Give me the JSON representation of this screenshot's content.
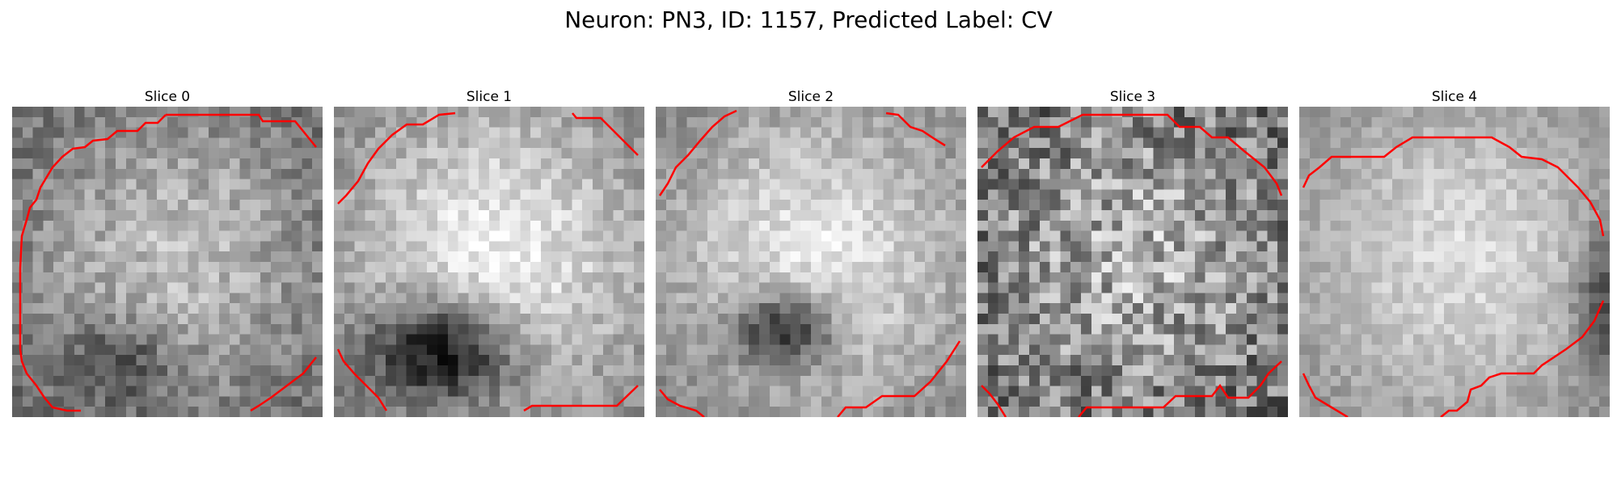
{
  "figure": {
    "title": "Neuron: PN3, ID: 1157, Predicted Label: CV"
  },
  "contour_color": "#ff0000",
  "panels": [
    {
      "title": "Slice 0",
      "seed": 11,
      "style": "mid"
    },
    {
      "title": "Slice 1",
      "seed": 23,
      "style": "bright-dark-blob"
    },
    {
      "title": "Slice 2",
      "seed": 37,
      "style": "bright-small-blob"
    },
    {
      "title": "Slice 3",
      "seed": 41,
      "style": "noisy"
    },
    {
      "title": "Slice 4",
      "seed": 53,
      "style": "smooth-bright"
    }
  ]
}
